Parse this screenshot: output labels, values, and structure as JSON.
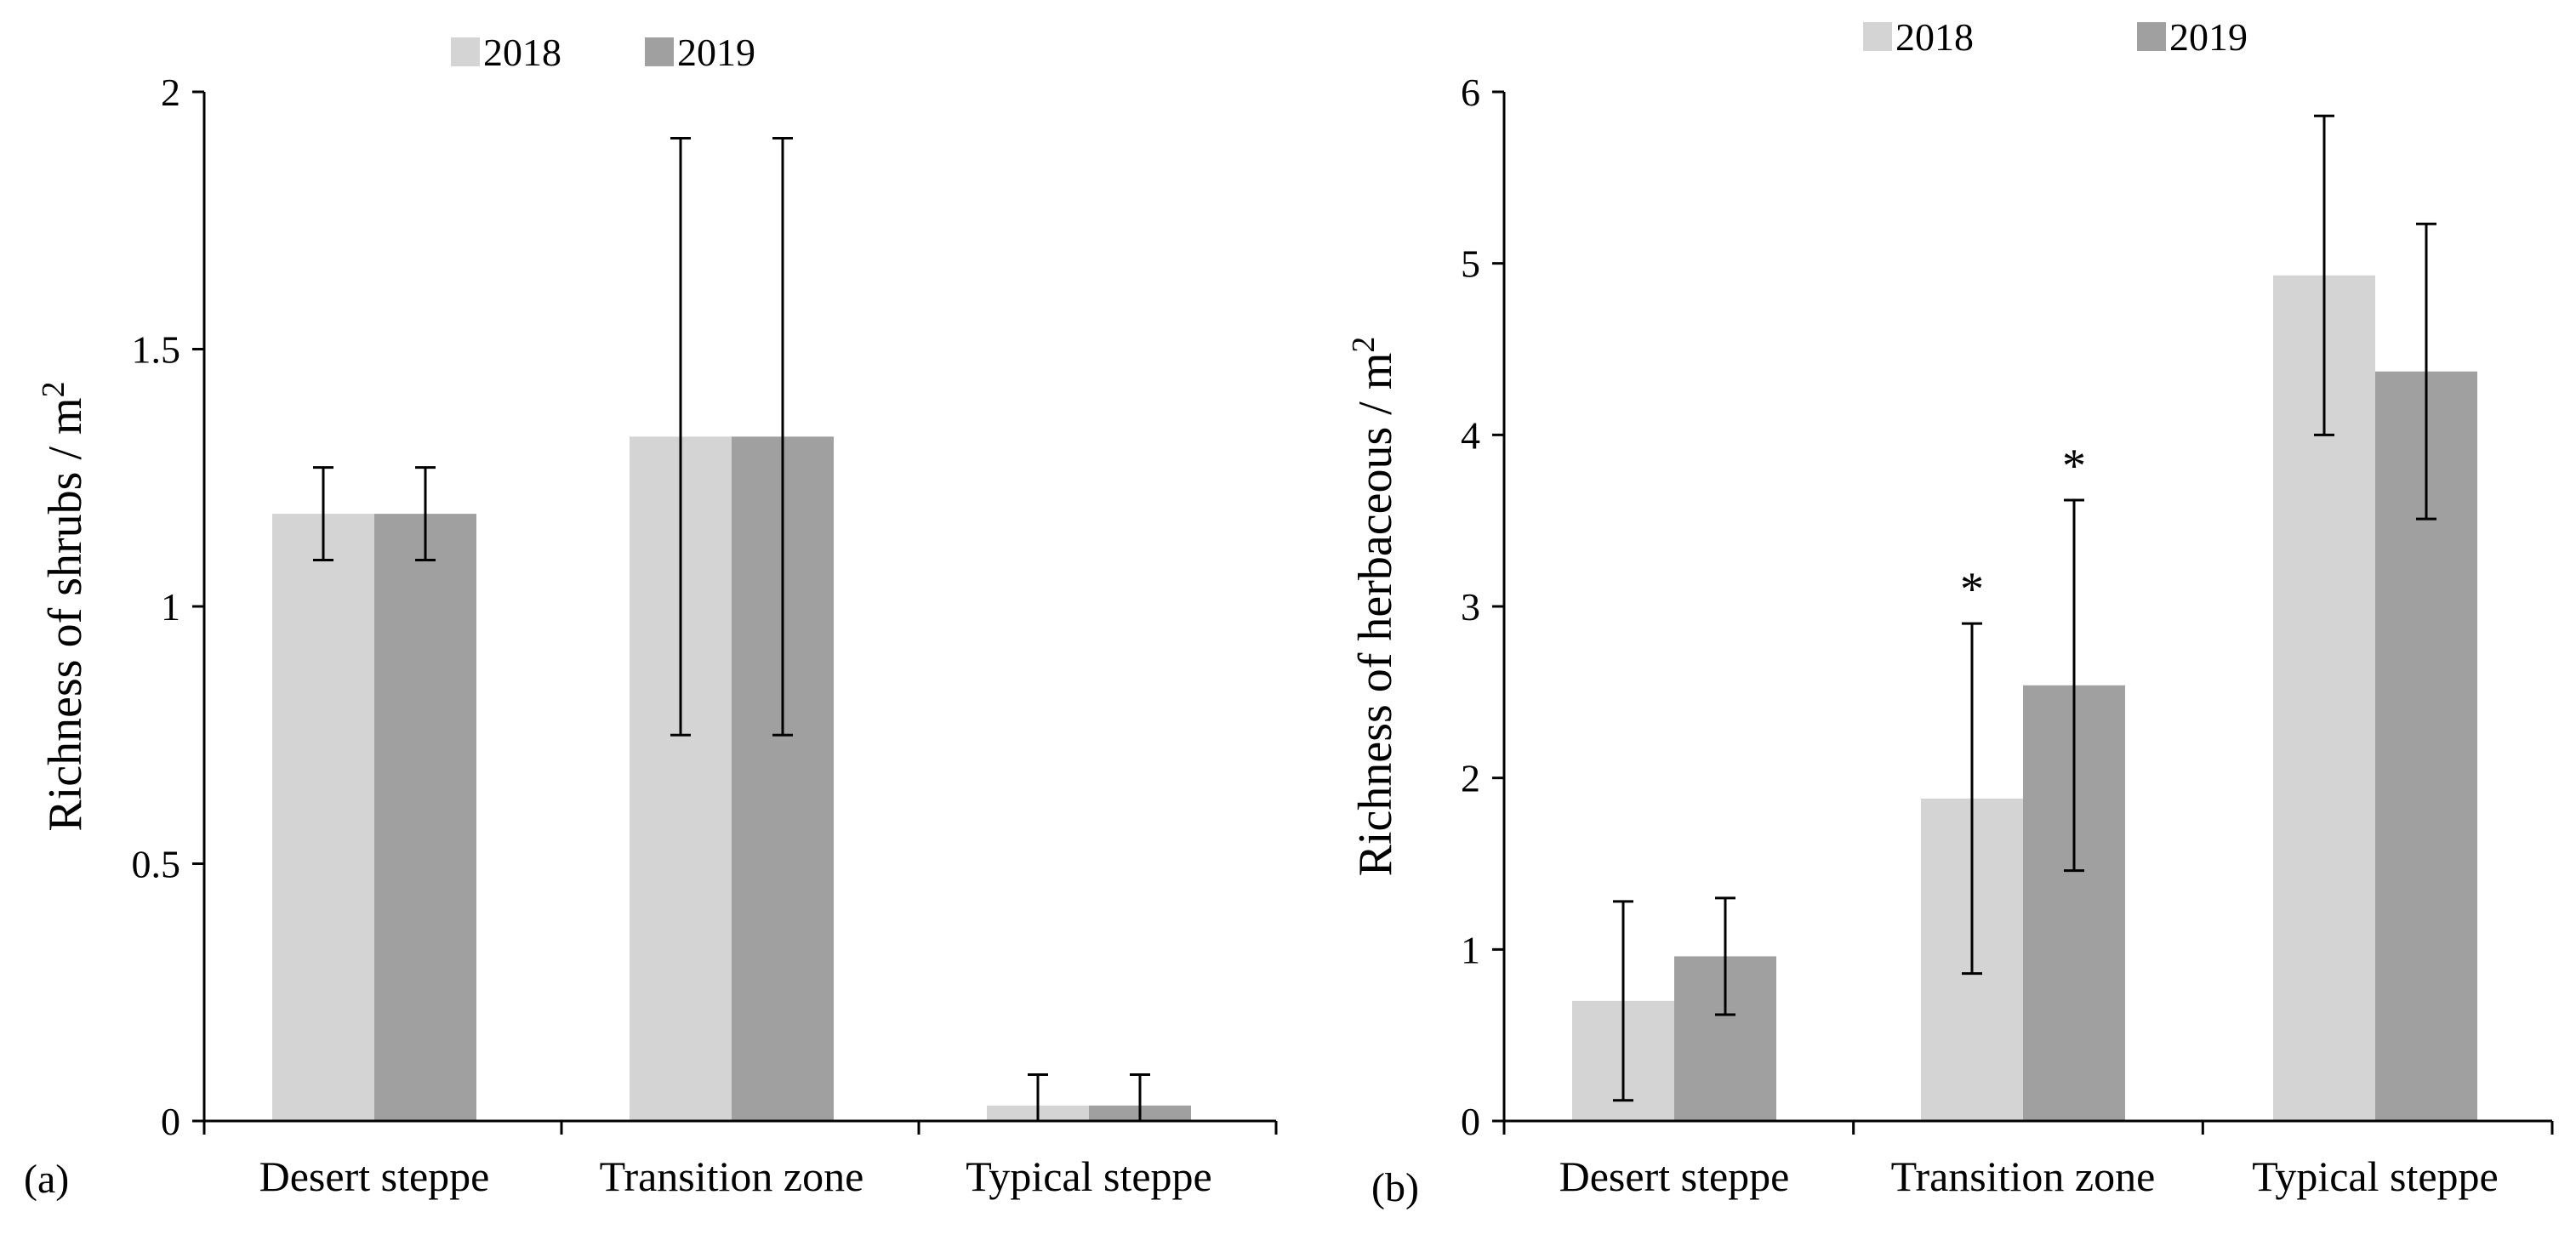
{
  "chart_data": [
    {
      "type": "bar",
      "panel_label": "(a)",
      "categories": [
        "Desert steppe",
        "Transition zone",
        "Typical steppe"
      ],
      "series": [
        {
          "name": "2018",
          "color": "#d4d4d4",
          "values": [
            1.18,
            1.33,
            0.03
          ],
          "errors": [
            0.09,
            0.58,
            0.06
          ],
          "annotations": [
            "",
            "",
            ""
          ]
        },
        {
          "name": "2019",
          "color": "#a0a0a0",
          "values": [
            1.18,
            1.33,
            0.03
          ],
          "errors": [
            0.09,
            0.58,
            0.06
          ],
          "annotations": [
            "",
            "",
            ""
          ]
        }
      ],
      "ylabel": "Richness of shrubs / m",
      "ylabel_sup": "2",
      "ylim": [
        0,
        2
      ],
      "yticks": [
        0,
        0.5,
        1,
        1.5,
        2
      ],
      "ytick_labels": [
        "0",
        "0.5",
        "1",
        "1.5",
        "2"
      ],
      "legend": "top"
    },
    {
      "type": "bar",
      "panel_label": "(b)",
      "categories": [
        "Desert steppe",
        "Transition zone",
        "Typical steppe"
      ],
      "series": [
        {
          "name": "2018",
          "color": "#d4d4d4",
          "values": [
            0.7,
            1.88,
            4.93
          ],
          "errors": [
            0.58,
            1.02,
            0.93
          ],
          "annotations": [
            "",
            "*",
            ""
          ]
        },
        {
          "name": "2019",
          "color": "#a0a0a0",
          "values": [
            0.96,
            2.54,
            4.37
          ],
          "errors": [
            0.34,
            1.08,
            0.86
          ],
          "annotations": [
            "",
            "*",
            ""
          ]
        }
      ],
      "ylabel": "Richness of herbaceous / m",
      "ylabel_sup": "2",
      "ylim": [
        0,
        6
      ],
      "yticks": [
        0,
        1,
        2,
        3,
        4,
        5,
        6
      ],
      "ytick_labels": [
        "0",
        "1",
        "2",
        "3",
        "4",
        "5",
        "6"
      ],
      "legend": "top"
    }
  ]
}
